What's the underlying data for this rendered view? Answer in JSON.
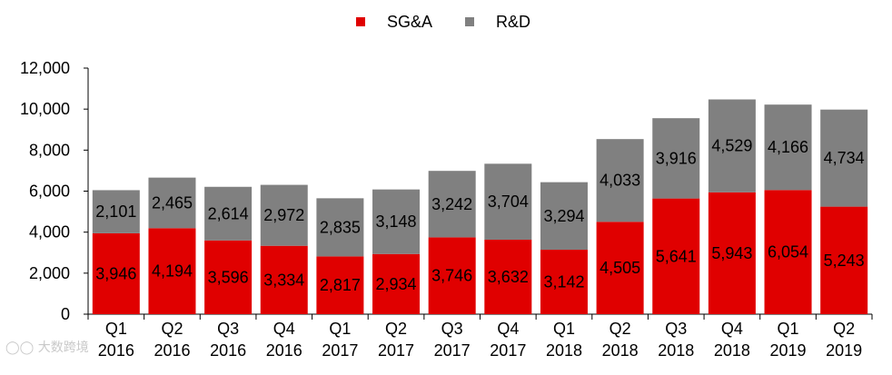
{
  "chart_data": {
    "type": "bar",
    "stacked": true,
    "categories": [
      [
        "Q1",
        "2016"
      ],
      [
        "Q2",
        "2016"
      ],
      [
        "Q3",
        "2016"
      ],
      [
        "Q4",
        "2016"
      ],
      [
        "Q1",
        "2017"
      ],
      [
        "Q2",
        "2017"
      ],
      [
        "Q3",
        "2017"
      ],
      [
        "Q4",
        "2017"
      ],
      [
        "Q1",
        "2018"
      ],
      [
        "Q2",
        "2018"
      ],
      [
        "Q3",
        "2018"
      ],
      [
        "Q4",
        "2018"
      ],
      [
        "Q1",
        "2019"
      ],
      [
        "Q2",
        "2019"
      ]
    ],
    "series": [
      {
        "name": "SG&A",
        "color": "#e00000",
        "values": [
          3946,
          4194,
          3596,
          3334,
          2817,
          2934,
          3746,
          3632,
          3142,
          4505,
          5641,
          5943,
          6054,
          5243
        ],
        "labels": [
          "3,946",
          "4,194",
          "3,596",
          "3,334",
          "2,817",
          "2,934",
          "3,746",
          "3,632",
          "3,142",
          "4,505",
          "5,641",
          "5,943",
          "6,054",
          "5,243"
        ]
      },
      {
        "name": "R&D",
        "color": "#808080",
        "values": [
          2101,
          2465,
          2614,
          2972,
          2835,
          3148,
          3242,
          3704,
          3294,
          4033,
          3916,
          4529,
          4166,
          4734
        ],
        "labels": [
          "2,101",
          "2,465",
          "2,614",
          "2,972",
          "2,835",
          "3,148",
          "3,242",
          "3,704",
          "3,294",
          "4,033",
          "3,916",
          "4,529",
          "4,166",
          "4,734"
        ]
      }
    ],
    "ylim": [
      0,
      12000
    ],
    "yticks": [
      0,
      2000,
      4000,
      6000,
      8000,
      10000,
      12000
    ],
    "ytick_labels": [
      "0",
      "2,000",
      "4,000",
      "6,000",
      "8,000",
      "10,000",
      "12,000"
    ],
    "xlabel": "",
    "ylabel": "",
    "title": "",
    "grid": false,
    "legend": "top-center"
  },
  "watermark": "大数跨境",
  "icons": {
    "watermark_logo": "eye-logo-icon"
  }
}
